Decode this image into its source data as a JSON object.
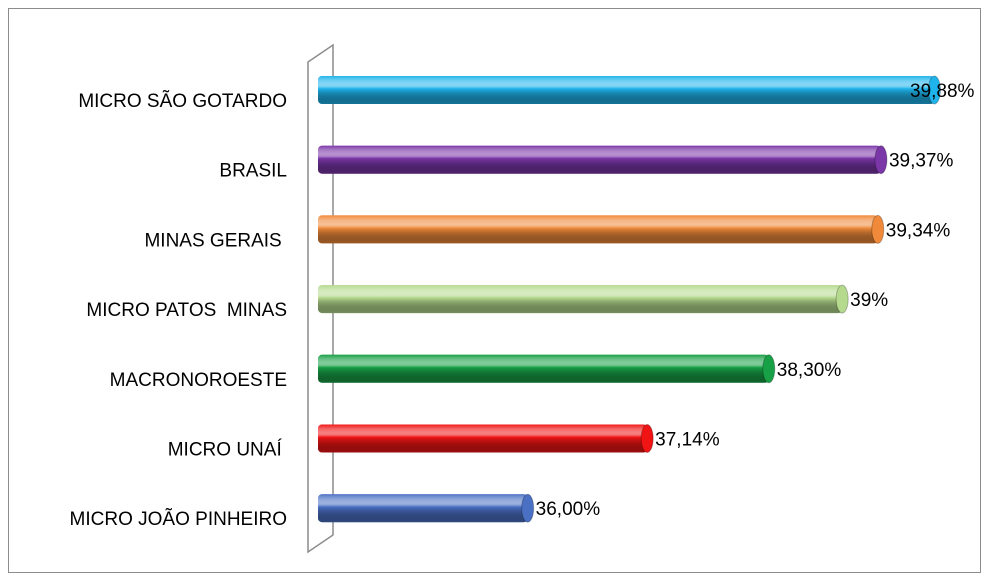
{
  "chart_data": {
    "type": "bar",
    "orientation": "horizontal",
    "categories": [
      "MICRO SÃO GOTARDO",
      "BRASIL",
      "MINAS GERAIS ",
      "MICRO PATOS  MINAS",
      "MACRONOROESTE",
      "MICRO UNAÍ ",
      "MICRO JOÃO PINHEIRO"
    ],
    "values": [
      39.88,
      39.37,
      39.34,
      39,
      38.3,
      37.14,
      36
    ],
    "value_labels": [
      "39,88%",
      "39,37%",
      "39,34%",
      "39%",
      "38,30%",
      "37,14%",
      "36,00%"
    ],
    "colors": [
      "#1fb4ec",
      "#7b36a8",
      "#f08a3a",
      "#b5da8e",
      "#18a046",
      "#f01414",
      "#4a70c4"
    ],
    "xlim": [
      34,
      40
    ]
  }
}
